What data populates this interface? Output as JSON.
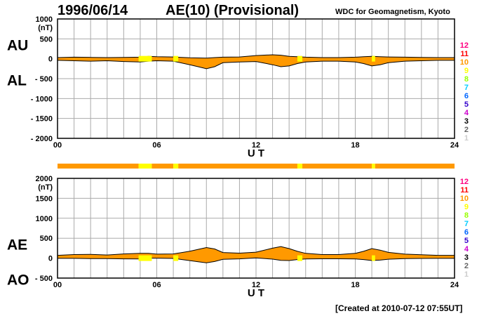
{
  "header": {
    "date": "1996/06/14",
    "title": "AE(10) (Provisional)",
    "source": "WDC for Geomagnetism, Kyoto"
  },
  "footer": {
    "created": "[Created at 2010-07-12 07:55UT]"
  },
  "colors": {
    "fill": "#ff9900",
    "highlight": "#ffff00",
    "grid": "#aaaaaa",
    "line": "#000000"
  },
  "scale_labels": [
    {
      "label": "12",
      "color": "#ff0080"
    },
    {
      "label": "11",
      "color": "#ff0000"
    },
    {
      "label": "10",
      "color": "#ff9900"
    },
    {
      "label": "9",
      "color": "#ffff00"
    },
    {
      "label": "8",
      "color": "#99ff00"
    },
    {
      "label": "7",
      "color": "#00ccff"
    },
    {
      "label": "6",
      "color": "#0066ff"
    },
    {
      "label": "5",
      "color": "#3300cc"
    },
    {
      "label": "4",
      "color": "#cc00cc"
    },
    {
      "label": "3",
      "color": "#000000"
    },
    {
      "label": "2",
      "color": "#666666"
    },
    {
      "label": "1",
      "color": "#cccccc"
    }
  ],
  "chart_data": [
    {
      "type": "area",
      "upper_label": "AU",
      "lower_label": "AL",
      "unit": "(nT)",
      "xlabel": "U T",
      "xlim": [
        0,
        24
      ],
      "xticks": [
        "00",
        "06",
        "12",
        "18",
        "24"
      ],
      "ylim": [
        -2000,
        1000
      ],
      "yticks": [
        "1000",
        "500",
        "0",
        "- 500",
        "- 1000",
        "- 1500",
        "- 2000"
      ],
      "grid": true,
      "x": [
        0,
        1,
        2,
        3,
        4,
        5,
        5.5,
        6,
        7,
        8,
        8.5,
        9,
        9.5,
        10,
        11,
        12,
        13,
        13.5,
        14,
        14.5,
        15,
        16,
        17,
        18,
        18.5,
        19,
        19.5,
        20,
        21,
        22,
        23,
        24
      ],
      "series": [
        {
          "name": "AU",
          "values": [
            30,
            40,
            35,
            30,
            35,
            40,
            60,
            50,
            45,
            25,
            20,
            15,
            30,
            40,
            45,
            80,
            100,
            90,
            60,
            50,
            40,
            30,
            30,
            40,
            50,
            60,
            50,
            45,
            40,
            35,
            30,
            30
          ]
        },
        {
          "name": "AL",
          "values": [
            -40,
            -50,
            -60,
            -50,
            -70,
            -80,
            -60,
            -50,
            -60,
            -150,
            -200,
            -250,
            -200,
            -100,
            -80,
            -70,
            -150,
            -200,
            -180,
            -120,
            -80,
            -60,
            -60,
            -80,
            -120,
            -180,
            -150,
            -100,
            -60,
            -50,
            -40,
            -40
          ]
        }
      ]
    },
    {
      "type": "area",
      "upper_label": "AE",
      "lower_label": "AO",
      "unit": "(nT)",
      "xlabel": "U T",
      "xlim": [
        0,
        24
      ],
      "xticks": [
        "00",
        "06",
        "12",
        "18",
        "24"
      ],
      "ylim": [
        -500,
        2000
      ],
      "yticks": [
        "2000",
        "1500",
        "1000",
        "500",
        "0",
        "- 500"
      ],
      "grid": true,
      "x": [
        0,
        1,
        2,
        3,
        4,
        5,
        5.5,
        6,
        7,
        8,
        8.5,
        9,
        9.5,
        10,
        11,
        12,
        13,
        13.5,
        14,
        14.5,
        15,
        16,
        17,
        18,
        18.5,
        19,
        19.5,
        20,
        21,
        22,
        23,
        24
      ],
      "series": [
        {
          "name": "AE",
          "values": [
            70,
            90,
            95,
            80,
            105,
            120,
            120,
            100,
            105,
            175,
            220,
            265,
            230,
            140,
            125,
            150,
            250,
            290,
            240,
            170,
            120,
            90,
            90,
            120,
            170,
            240,
            200,
            145,
            100,
            85,
            70,
            70
          ]
        },
        {
          "name": "AO",
          "values": [
            -5,
            -5,
            -12,
            -10,
            -17,
            -20,
            0,
            0,
            -7,
            -62,
            -90,
            -117,
            -85,
            -30,
            -17,
            5,
            -25,
            -55,
            -60,
            -35,
            -20,
            -15,
            -15,
            -20,
            -35,
            -60,
            -50,
            -27,
            -10,
            -7,
            -5,
            -5
          ]
        }
      ]
    }
  ],
  "activity_bar": [
    {
      "start": 0,
      "end": 4.9,
      "color": "#ff9900"
    },
    {
      "start": 4.9,
      "end": 5.7,
      "color": "#ffff00"
    },
    {
      "start": 5.7,
      "end": 7.0,
      "color": "#ff9900"
    },
    {
      "start": 7.0,
      "end": 7.3,
      "color": "#ffff00"
    },
    {
      "start": 7.3,
      "end": 14.5,
      "color": "#ff9900"
    },
    {
      "start": 14.5,
      "end": 14.8,
      "color": "#ffff00"
    },
    {
      "start": 14.8,
      "end": 19.0,
      "color": "#ff9900"
    },
    {
      "start": 19.0,
      "end": 19.2,
      "color": "#ffff00"
    },
    {
      "start": 19.2,
      "end": 24,
      "color": "#ff9900"
    }
  ]
}
